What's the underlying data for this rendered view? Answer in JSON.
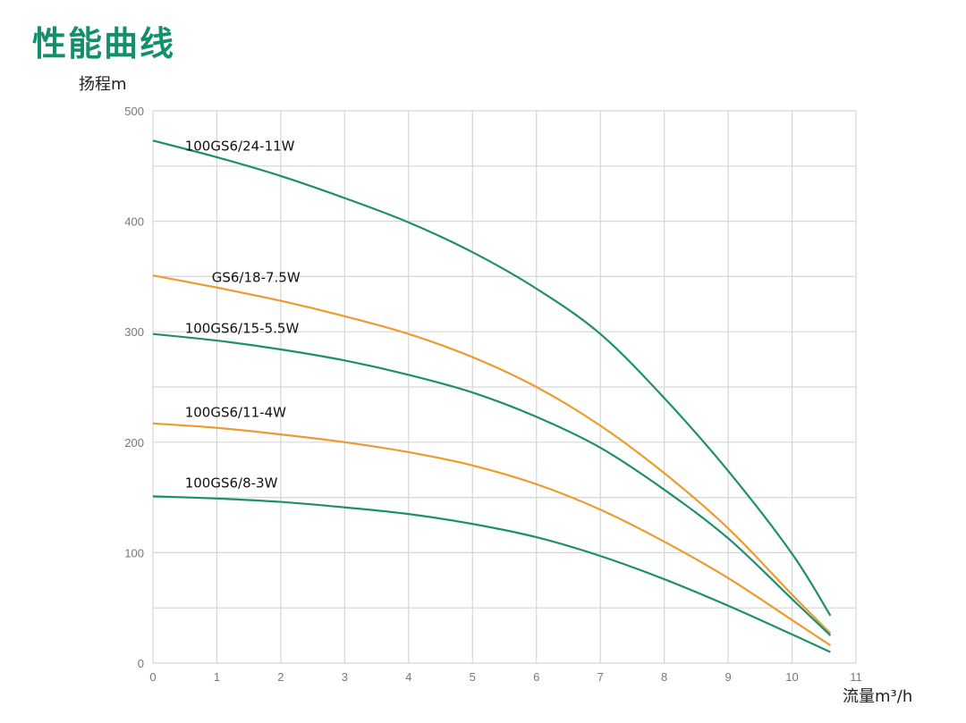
{
  "chart_data": {
    "type": "line",
    "title": "性能曲线",
    "ylabel": "扬程m",
    "xlabel": "流量m³/h",
    "xlim": [
      0,
      11
    ],
    "ylim": [
      0,
      500
    ],
    "xticks": [
      0,
      1,
      2,
      3,
      4,
      5,
      6,
      7,
      8,
      9,
      10,
      11
    ],
    "yticks": [
      0,
      100,
      200,
      300,
      400,
      500
    ],
    "grid": {
      "x_step": 1,
      "y_step": 50
    },
    "x": [
      0,
      1,
      2,
      3,
      4,
      5,
      6,
      7,
      8,
      9,
      10,
      10.6
    ],
    "series": [
      {
        "name": "100GS6/24-11W",
        "color": "#1e8f6c",
        "values": [
          473,
          458,
          441,
          421,
          399,
          372,
          339,
          298,
          240,
          174,
          99,
          43
        ],
        "label_at": [
          0.5,
          468
        ]
      },
      {
        "name": "GS6/18-7.5W",
        "color": "#ee9a2e",
        "values": [
          351,
          340,
          328,
          314,
          298,
          277,
          250,
          215,
          172,
          122,
          62,
          27
        ],
        "label_at": [
          0.92,
          349
        ]
      },
      {
        "name": "100GS6/15-5.5W",
        "color": "#1e8f6c",
        "values": [
          298,
          292,
          284,
          274,
          261,
          245,
          223,
          195,
          157,
          113,
          58,
          25
        ],
        "label_at": [
          0.5,
          303
        ]
      },
      {
        "name": "100GS6/11-4W",
        "color": "#ee9a2e",
        "values": [
          217,
          213,
          207,
          200,
          191,
          179,
          162,
          139,
          110,
          77,
          39,
          16
        ],
        "label_at": [
          0.5,
          227
        ]
      },
      {
        "name": "100GS6/8-3W",
        "color": "#1e8f6c",
        "values": [
          151,
          149,
          146,
          141,
          135,
          126,
          114,
          97,
          76,
          52,
          26,
          10
        ],
        "label_at": [
          0.5,
          163
        ]
      }
    ]
  }
}
